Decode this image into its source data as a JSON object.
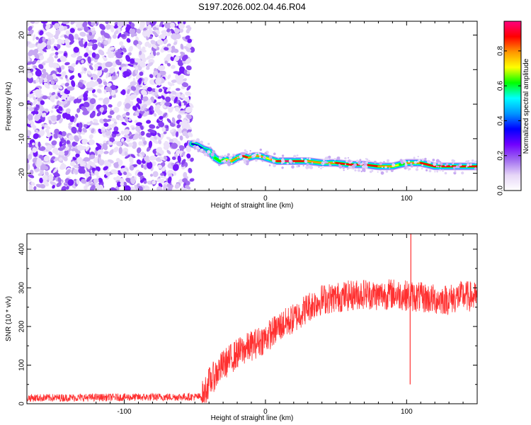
{
  "title": "S197.2026.002.04.46.R04",
  "chart_data": [
    {
      "type": "heatmap",
      "name": "spectrogram",
      "xlabel": "Height of straight line (km)",
      "ylabel": "Frequency (Hz)",
      "xlim": [
        -169,
        150
      ],
      "ylim": [
        -25,
        24
      ],
      "xticks": [
        -100,
        0,
        100
      ],
      "xtick_labels": [
        "-100",
        "0",
        "100"
      ],
      "yticks": [
        20,
        10,
        0,
        -10,
        -20
      ],
      "ytick_labels": [
        "20",
        "10",
        "0",
        "-10",
        "-20"
      ],
      "noise_region": {
        "x_from": -169,
        "x_to": -52,
        "description_level": "low amplitude speckle"
      },
      "signal_track": {
        "x": [
          -52,
          -48,
          -44,
          -40,
          -36,
          -32,
          -28,
          -24,
          -20,
          -16,
          -12,
          -8,
          -4,
          0,
          4,
          8,
          12,
          20,
          30,
          40,
          50,
          60,
          70,
          80,
          90,
          95,
          100,
          110,
          120,
          130,
          140,
          150
        ],
        "frequency": [
          -11.5,
          -12,
          -13,
          -13.5,
          -15.5,
          -16.5,
          -16,
          -16.5,
          -15.5,
          -15,
          -15.5,
          -15,
          -15,
          -15.5,
          -16,
          -16.5,
          -16.5,
          -16.5,
          -16.5,
          -17,
          -17,
          -17.5,
          -17.5,
          -18,
          -18,
          -17.5,
          -17,
          -17,
          -18,
          -18,
          -18,
          -18
        ],
        "amplitude": [
          0.35,
          0.3,
          0.45,
          0.4,
          0.7,
          0.6,
          0.55,
          0.8,
          0.75,
          0.85,
          0.9,
          0.7,
          0.8,
          0.75,
          0.7,
          0.85,
          0.95,
          0.95,
          0.85,
          0.8,
          0.85,
          0.9,
          0.9,
          0.85,
          0.8,
          0.6,
          0.7,
          0.85,
          0.9,
          0.95,
          0.9,
          0.85
        ]
      },
      "colorbar": {
        "label": "Normalized spectral amplitude",
        "range": [
          0,
          0.97
        ],
        "ticks": [
          0.0,
          0.2,
          0.4,
          0.6,
          0.8
        ],
        "tick_labels": [
          "0.0",
          "0.2",
          "0.4",
          "0.6",
          "0.8"
        ],
        "colors": [
          "#ffffff",
          "#e6d6f7",
          "#a06af0",
          "#7000ff",
          "#0000ff",
          "#0096ff",
          "#00ffff",
          "#00ff00",
          "#ffff00",
          "#ff9600",
          "#ff0000",
          "#ff0080"
        ]
      }
    },
    {
      "type": "line",
      "name": "snr",
      "xlabel": "Height of straight line (km)",
      "ylabel": "SNR (10 * v/v)",
      "xlim": [
        -169,
        150
      ],
      "ylim": [
        0,
        440
      ],
      "xticks": [
        -100,
        0,
        100
      ],
      "xtick_labels": [
        "-100",
        "0",
        "100"
      ],
      "yticks": [
        0,
        100,
        200,
        300,
        400
      ],
      "ytick_labels": [
        "0",
        "100",
        "200",
        "300",
        "400"
      ],
      "color": "#ff3030",
      "trend": {
        "x": [
          -169,
          -45,
          -40,
          -30,
          -20,
          -10,
          0,
          10,
          20,
          30,
          40,
          50,
          60,
          70,
          80,
          90,
          100,
          110,
          120,
          130,
          140,
          150
        ],
        "y": [
          15,
          18,
          55,
          100,
          130,
          150,
          170,
          200,
          220,
          250,
          270,
          275,
          280,
          285,
          280,
          285,
          280,
          275,
          270,
          270,
          280,
          275
        ]
      },
      "noise_amplitude": [
        {
          "x_from": -169,
          "x_to": -45,
          "amplitude": 10
        },
        {
          "x_from": -45,
          "x_to": 150,
          "amplitude": 40
        }
      ],
      "spikes": [
        {
          "x": 103,
          "y": 440
        },
        {
          "x": 102.5,
          "y": 50
        }
      ]
    }
  ]
}
